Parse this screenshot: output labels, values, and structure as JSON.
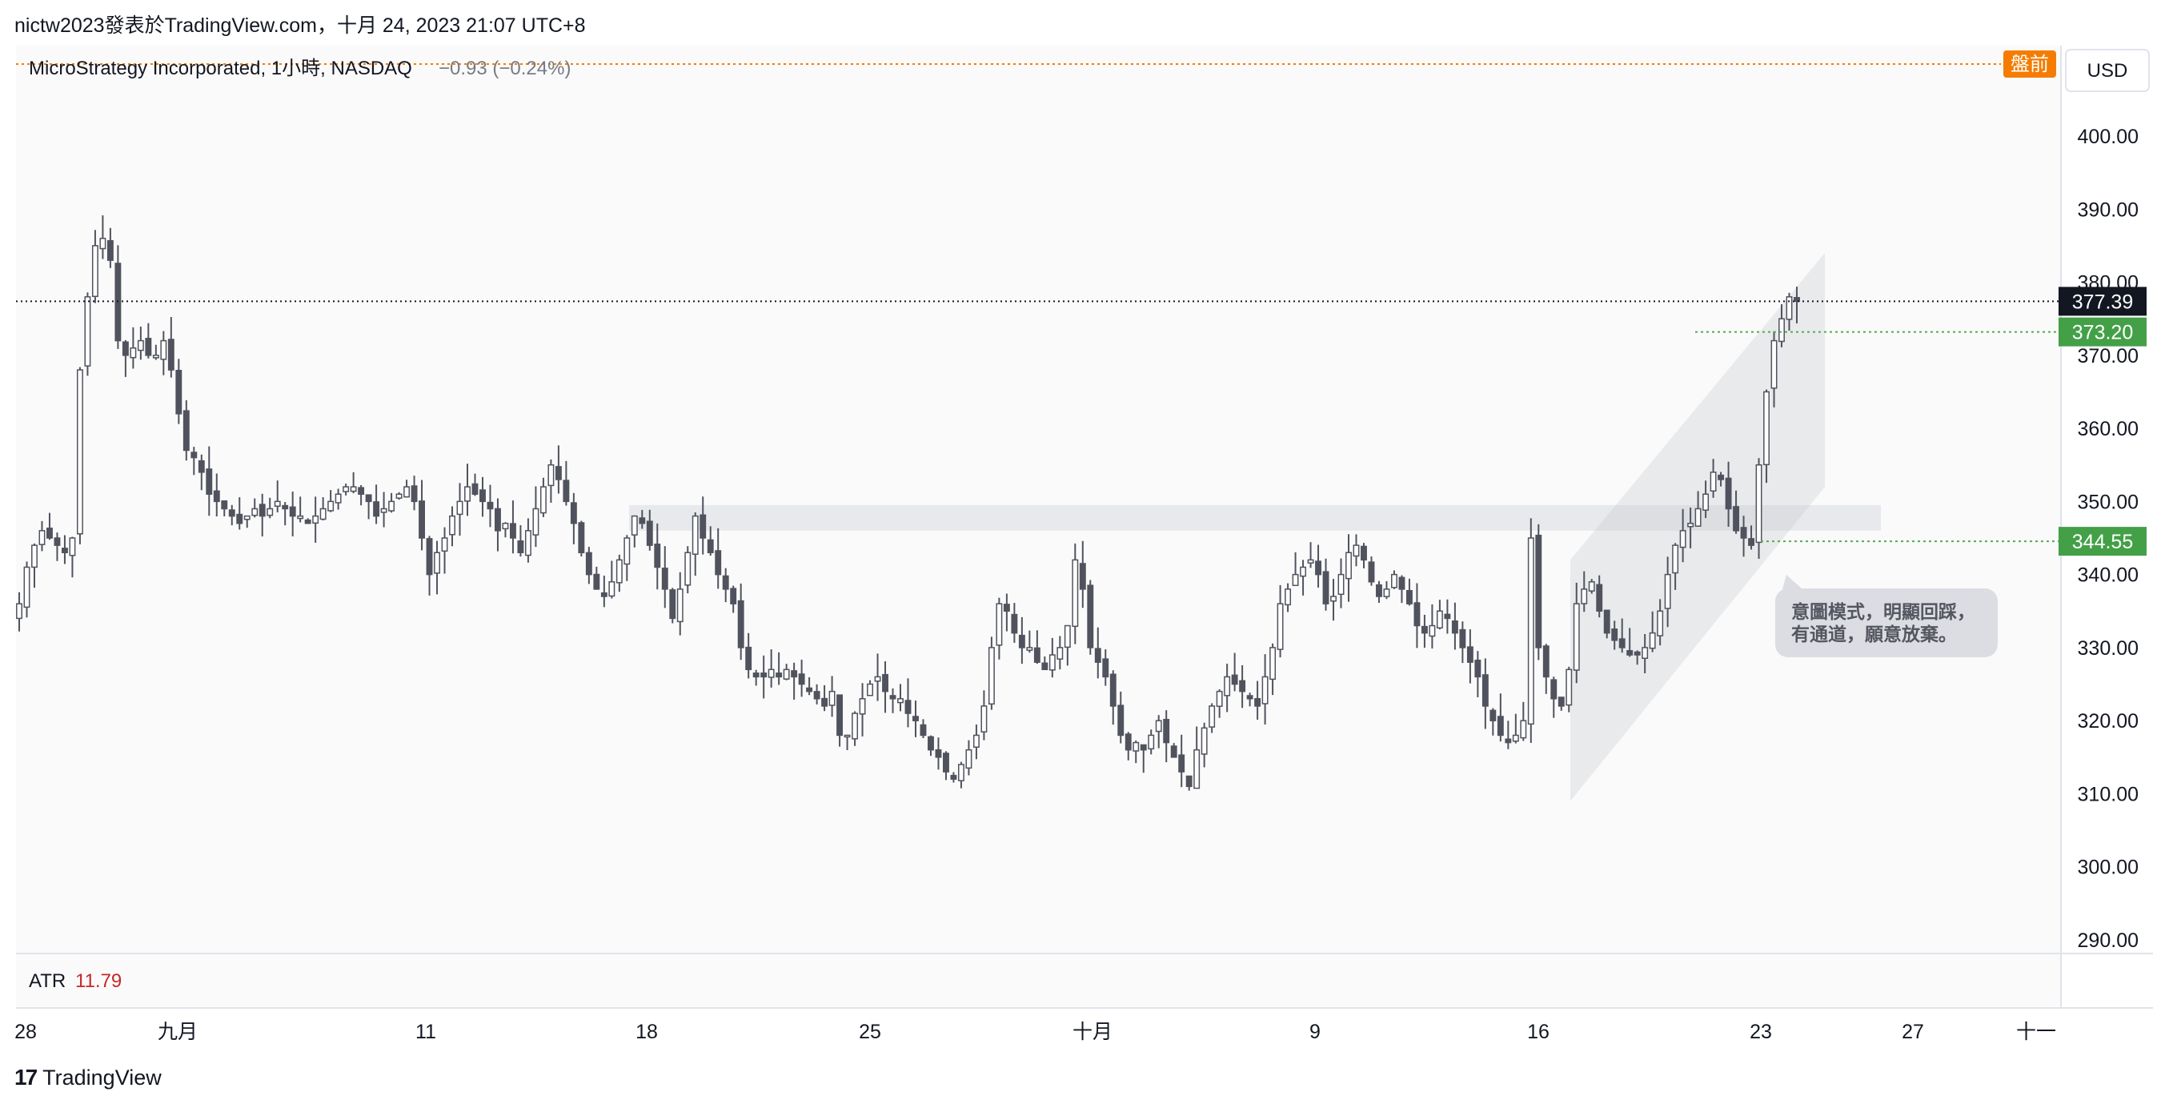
{
  "header": {
    "publisher_line": "nictw2023發表於TradingView.com，十月 24, 2023 21:07 UTC+8"
  },
  "chart_data": {
    "type": "candlestick",
    "symbol_line": "MicroStrategy Incorporated, 1小時, NASDAQ",
    "change_text": "−0.93 (−0.24%)",
    "currency": "USD",
    "premarket_badge": "盤前",
    "ylim": [
      288,
      410
    ],
    "y_ticks": [
      "400.00",
      "390.00",
      "380.00",
      "370.00",
      "360.00",
      "350.00",
      "340.00",
      "330.00",
      "320.00",
      "310.00",
      "300.00",
      "290.00"
    ],
    "y_tick_values": [
      400,
      390,
      380,
      370,
      360,
      350,
      340,
      330,
      320,
      310,
      300,
      290
    ],
    "x_ticks": [
      "28",
      "九月",
      "11",
      "18",
      "25",
      "十月",
      "9",
      "16",
      "23",
      "27",
      "十一"
    ],
    "last_price": "377.39",
    "last_price_value": 377.39,
    "level_1": "373.20",
    "level_1_value": 373.2,
    "level_2": "344.55",
    "level_2_value": 344.55,
    "resistance_zone": [
      346.0,
      349.5
    ],
    "channel": {
      "lower_start": [
        0,
        309
      ],
      "lower_end": [
        1,
        352
      ],
      "upper_start": [
        0,
        342
      ],
      "upper_end": [
        1,
        384
      ]
    },
    "annotation": "意圖模式，明顯回踩，\n有通道，願意放棄。",
    "indicator": {
      "name": "ATR",
      "value": "11.79"
    },
    "closes": [
      336,
      341,
      344,
      346,
      345,
      344,
      343,
      345,
      368,
      378,
      385,
      386,
      383,
      372,
      370,
      371,
      372,
      370,
      370,
      372,
      368,
      362,
      357,
      356,
      354,
      351,
      350,
      349,
      348,
      347,
      348,
      349,
      348,
      349,
      350,
      349,
      348,
      348,
      347,
      348,
      349,
      350,
      351,
      352,
      352,
      351,
      350,
      348,
      349,
      350,
      351,
      352,
      350,
      345,
      340,
      343,
      345,
      348,
      350,
      352,
      351,
      350,
      349,
      346,
      347,
      345,
      343,
      346,
      349,
      352,
      355,
      353,
      350,
      347,
      343,
      340,
      338,
      337,
      339,
      342,
      345,
      348,
      347,
      344,
      341,
      338,
      334,
      338,
      343,
      348,
      345,
      343,
      340,
      338,
      336,
      330,
      327,
      326,
      326,
      327,
      326,
      327,
      326,
      325,
      324,
      323,
      322,
      324,
      318,
      318,
      321,
      323,
      325,
      326,
      324,
      323,
      323,
      321,
      320,
      318,
      316,
      315,
      313,
      312,
      314,
      316,
      318,
      322,
      330,
      336,
      335,
      332,
      330,
      330,
      328,
      327,
      329,
      330,
      333,
      342,
      338,
      330,
      328,
      326,
      322,
      318,
      316,
      317,
      316,
      318,
      320,
      317,
      315,
      313,
      311,
      316,
      319,
      322,
      324,
      326,
      325,
      324,
      323,
      322,
      326,
      330,
      336,
      338,
      340,
      341,
      342,
      340,
      336,
      337,
      340,
      343,
      344,
      342,
      339,
      337,
      338,
      340,
      338,
      336,
      333,
      332,
      333,
      335,
      334,
      332,
      330,
      328,
      326,
      322,
      320,
      318,
      317,
      318,
      320,
      345,
      330,
      326,
      323,
      322,
      327,
      336,
      338,
      339,
      335,
      332,
      331,
      330,
      329,
      329,
      330,
      332,
      335,
      340,
      344,
      346,
      347,
      349,
      351,
      354,
      353,
      349,
      346,
      345,
      344,
      355,
      365,
      372,
      375,
      378,
      377.39
    ]
  }
}
